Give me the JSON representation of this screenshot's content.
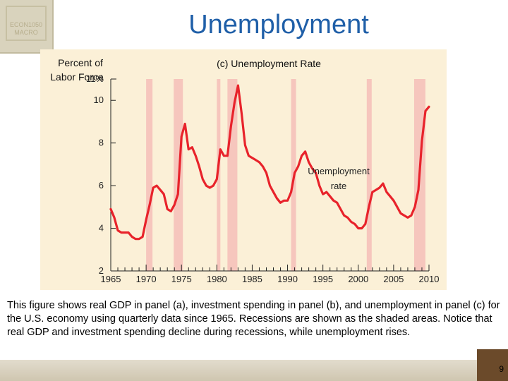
{
  "slide": {
    "title": "Unemployment",
    "badge_line1": "ECON1050",
    "badge_line2": "MACRO",
    "caption": "This figure shows real GDP in panel (a), investment spending in panel (b), and unemployment in panel (c) for the U.S. economy using quarterly data since 1965. Recessions are shown as the shaded areas. Notice that real GDP and investment spending decline during recessions, while unemployment rises.",
    "page_number": "9"
  },
  "colors": {
    "title": "#1f5fa8",
    "panel_bg": "#fbf0d7",
    "recession": "#f6c6bd",
    "line": "#e8232b"
  },
  "chart_data": {
    "type": "line",
    "title": "(c) Unemployment Rate",
    "ylabel_line1": "Percent of",
    "ylabel_line2": "Labor Force",
    "xlabel": "",
    "xlim": [
      1965,
      2010
    ],
    "ylim": [
      2,
      11
    ],
    "ytick_values": [
      2,
      4,
      6,
      8,
      10,
      11
    ],
    "ytick_labels": [
      "2",
      "4",
      "6",
      "8",
      "10",
      "11%"
    ],
    "xtick_values": [
      1965,
      1970,
      1975,
      1980,
      1985,
      1990,
      1995,
      2000,
      2005,
      2010
    ],
    "xtick_labels": [
      "1965",
      "1970",
      "1975",
      "1980",
      "1985",
      "1990",
      "1995",
      "2000",
      "2005",
      "2010"
    ],
    "annotation_line1": "Unemployment",
    "annotation_line2": "rate",
    "recessions": [
      [
        1970.0,
        1970.9
      ],
      [
        1973.9,
        1975.2
      ],
      [
        1980.0,
        1980.5
      ],
      [
        1981.5,
        1982.9
      ],
      [
        1990.5,
        1991.2
      ],
      [
        2001.2,
        2001.9
      ],
      [
        2007.9,
        2009.5
      ]
    ],
    "series": [
      {
        "x": [
          1965.0,
          1965.5,
          1966.0,
          1966.5,
          1967.0,
          1967.5,
          1968.0,
          1968.5,
          1969.0,
          1969.5,
          1970.0,
          1970.5,
          1971.0,
          1971.5,
          1972.0,
          1972.5,
          1973.0,
          1973.5,
          1974.0,
          1974.5,
          1975.0,
          1975.5,
          1976.0,
          1976.5,
          1977.0,
          1977.5,
          1978.0,
          1978.5,
          1979.0,
          1979.5,
          1980.0,
          1980.5,
          1981.0,
          1981.5,
          1982.0,
          1982.5,
          1983.0,
          1983.5,
          1984.0,
          1984.5,
          1985.0,
          1985.5,
          1986.0,
          1986.5,
          1987.0,
          1987.5,
          1988.0,
          1988.5,
          1989.0,
          1989.5,
          1990.0,
          1990.5,
          1991.0,
          1991.5,
          1992.0,
          1992.5,
          1993.0,
          1993.5,
          1994.0,
          1994.5,
          1995.0,
          1995.5,
          1996.0,
          1996.5,
          1997.0,
          1997.5,
          1998.0,
          1998.5,
          1999.0,
          1999.5,
          2000.0,
          2000.5,
          2001.0,
          2001.5,
          2002.0,
          2002.5,
          2003.0,
          2003.5,
          2004.0,
          2004.5,
          2005.0,
          2005.5,
          2006.0,
          2006.5,
          2007.0,
          2007.5,
          2008.0,
          2008.5,
          2009.0,
          2009.5,
          2010.0
        ],
        "y": [
          4.9,
          4.5,
          3.9,
          3.8,
          3.8,
          3.8,
          3.6,
          3.5,
          3.5,
          3.6,
          4.4,
          5.1,
          5.9,
          6.0,
          5.8,
          5.6,
          4.9,
          4.8,
          5.1,
          5.6,
          8.3,
          8.9,
          7.7,
          7.8,
          7.4,
          6.9,
          6.3,
          6.0,
          5.9,
          6.0,
          6.3,
          7.7,
          7.4,
          7.4,
          8.8,
          9.9,
          10.7,
          9.4,
          7.9,
          7.4,
          7.3,
          7.2,
          7.1,
          6.9,
          6.6,
          6.0,
          5.7,
          5.4,
          5.2,
          5.3,
          5.3,
          5.7,
          6.6,
          6.9,
          7.4,
          7.6,
          7.1,
          6.8,
          6.6,
          6.0,
          5.6,
          5.7,
          5.5,
          5.3,
          5.2,
          4.9,
          4.6,
          4.5,
          4.3,
          4.2,
          4.0,
          4.0,
          4.2,
          5.0,
          5.7,
          5.8,
          5.9,
          6.1,
          5.7,
          5.5,
          5.3,
          5.0,
          4.7,
          4.6,
          4.5,
          4.6,
          5.0,
          5.8,
          8.1,
          9.5,
          9.7
        ]
      }
    ]
  }
}
